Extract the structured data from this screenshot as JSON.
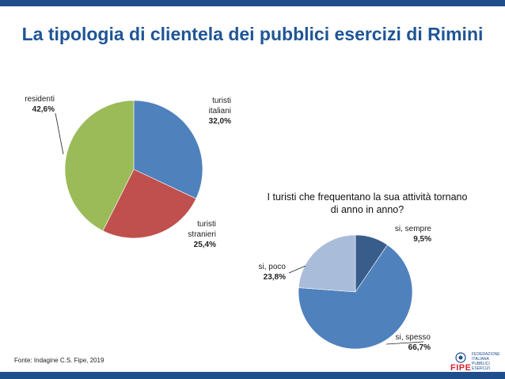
{
  "title": "La tipologia di clientela dei pubblici esercizi di Rimini",
  "source": "Fonte: Indagine C.S. Fipe, 2019",
  "logo": {
    "word": "FIPE",
    "lines": [
      "FEDERAZIONE",
      "ITALIANA",
      "PUBBLICI",
      "ESERCIZI"
    ]
  },
  "colors": {
    "bar": "#1f4e8c",
    "title": "#1f5596"
  },
  "chart_data": [
    {
      "type": "pie",
      "title": "",
      "slices": [
        {
          "label": [
            "turisti",
            "italiani"
          ],
          "value": 32.0,
          "value_label": "32,0%",
          "color": "#4f81bd"
        },
        {
          "label": [
            "turisti",
            "stranieri"
          ],
          "value": 25.4,
          "value_label": "25,4%",
          "color": "#c0504d"
        },
        {
          "label": [
            "residenti"
          ],
          "value": 42.6,
          "value_label": "42,6%",
          "color": "#9bbb59"
        }
      ]
    },
    {
      "type": "pie",
      "title": [
        "I turisti che frequentano la sua attività tornano",
        "di anno in anno?"
      ],
      "slices": [
        {
          "label": [
            "si, sempre"
          ],
          "value": 9.5,
          "value_label": "9,5%",
          "color": "#385d8a"
        },
        {
          "label": [
            "si, spesso"
          ],
          "value": 66.7,
          "value_label": "66,7%",
          "color": "#4f81bd"
        },
        {
          "label": [
            "si, poco"
          ],
          "value": 23.8,
          "value_label": "23,8%",
          "color": "#a9bcd9"
        }
      ]
    }
  ]
}
